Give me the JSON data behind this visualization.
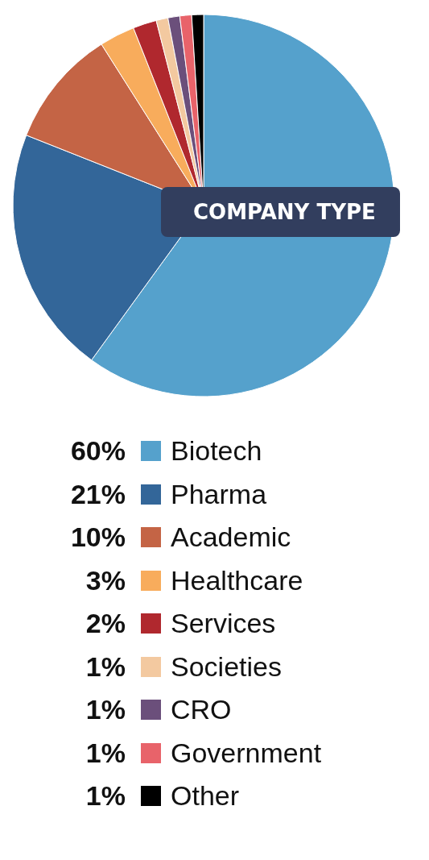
{
  "chart_data": {
    "type": "pie",
    "title": "COMPANY TYPE",
    "categories": [
      "Biotech",
      "Pharma",
      "Academic",
      "Healthcare",
      "Services",
      "Societies",
      "CRO",
      "Government",
      "Other"
    ],
    "values": [
      60,
      21,
      10,
      3,
      2,
      1,
      1,
      1,
      1
    ],
    "colors": [
      "#55a1cc",
      "#336699",
      "#c46445",
      "#f8ac5c",
      "#b0282e",
      "#f3c9a0",
      "#6b4f7b",
      "#e8636a",
      "#000000"
    ],
    "value_labels": [
      "60%",
      "21%",
      "10%",
      "3%",
      "2%",
      "1%",
      "1%",
      "1%",
      "1%"
    ],
    "legend": "bottom"
  }
}
